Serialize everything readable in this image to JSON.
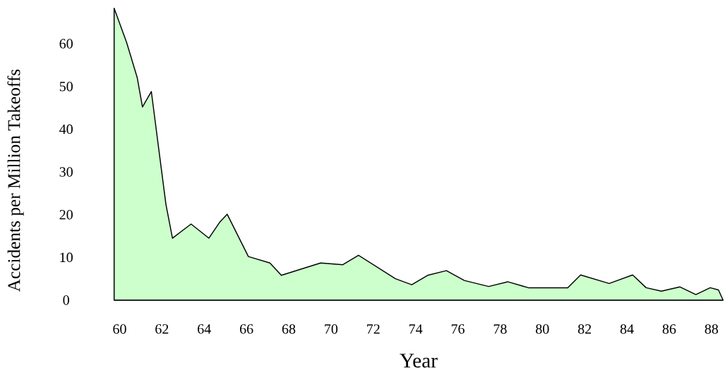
{
  "chart_data": {
    "type": "area",
    "xlabel": "Year",
    "ylabel": "Accidents per Million Takeoffs",
    "x": [
      59.74,
      60.33,
      60.83,
      61.08,
      61.5,
      61.86,
      62.19,
      62.5,
      63.38,
      64.22,
      64.73,
      65.09,
      66.09,
      67.11,
      67.65,
      69.51,
      70.56,
      71.3,
      73.05,
      73.82,
      74.57,
      75.46,
      76.31,
      77.46,
      78.36,
      79.06,
      79.34,
      81.2,
      81.81,
      83.16,
      84.27,
      84.91,
      85.63,
      86.5,
      87.26,
      87.94,
      88.33,
      88.55
    ],
    "values": [
      68.3,
      60.3,
      52.1,
      45.2,
      48.8,
      35.0,
      22.4,
      14.5,
      17.8,
      14.5,
      18.2,
      20.1,
      10.2,
      8.7,
      5.8,
      8.7,
      8.3,
      10.5,
      5.0,
      3.6,
      5.8,
      6.9,
      4.6,
      3.2,
      4.3,
      3.3,
      2.9,
      2.9,
      5.9,
      3.9,
      5.9,
      2.9,
      2.1,
      3.1,
      1.3,
      2.9,
      2.4,
      0
    ],
    "color": "#ccffcc",
    "xlim": [
      59.74,
      88.55
    ],
    "ylim": [
      0,
      68.3
    ],
    "xticks": [
      60,
      62,
      64,
      66,
      68,
      70,
      72,
      74,
      76,
      78,
      80,
      82,
      84,
      86,
      88
    ],
    "yticks": [
      0,
      10,
      20,
      30,
      40,
      50,
      60
    ],
    "grid": false
  }
}
